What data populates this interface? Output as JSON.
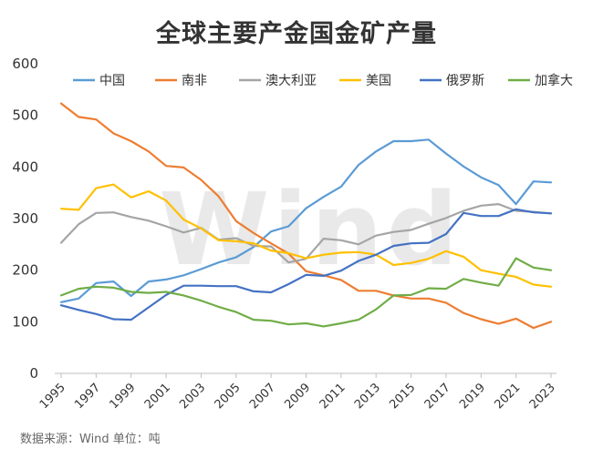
{
  "chart_data": {
    "type": "line",
    "title": "全球主要产金国金矿产量",
    "xlabel": "",
    "ylabel": "",
    "ylim": [
      0,
      600
    ],
    "yticks": [
      0,
      100,
      200,
      300,
      400,
      500,
      600
    ],
    "xlim": [
      1995,
      2023
    ],
    "xticks": [
      1995,
      1997,
      1999,
      2001,
      2003,
      2005,
      2007,
      2009,
      2011,
      2013,
      2015,
      2017,
      2019,
      2021,
      2023
    ],
    "x": [
      1995,
      1996,
      1997,
      1998,
      1999,
      2000,
      2001,
      2002,
      2003,
      2004,
      2005,
      2006,
      2007,
      2008,
      2009,
      2010,
      2011,
      2012,
      2013,
      2014,
      2015,
      2016,
      2017,
      2018,
      2019,
      2020,
      2021,
      2022,
      2023
    ],
    "grid": false,
    "legend_position": "top",
    "series": [
      {
        "name": "中国",
        "color": "#5b9bd5",
        "values": [
          138,
          145,
          175,
          178,
          150,
          178,
          182,
          190,
          202,
          215,
          225,
          245,
          275,
          285,
          320,
          342,
          362,
          404,
          430,
          450,
          450,
          453,
          426,
          401,
          380,
          365,
          328,
          372,
          370
        ]
      },
      {
        "name": "南非",
        "color": "#ed7d31",
        "values": [
          523,
          497,
          492,
          465,
          450,
          430,
          402,
          399,
          375,
          343,
          295,
          272,
          252,
          232,
          198,
          190,
          181,
          160,
          160,
          151,
          145,
          145,
          137,
          117,
          105,
          96,
          106,
          88,
          100
        ]
      },
      {
        "name": "澳大利亚",
        "color": "#a5a5a5",
        "values": [
          253,
          289,
          311,
          312,
          303,
          296,
          285,
          273,
          282,
          259,
          262,
          247,
          246,
          215,
          222,
          261,
          258,
          250,
          267,
          274,
          278,
          290,
          301,
          315,
          325,
          328,
          315,
          313,
          310
        ]
      },
      {
        "name": "美国",
        "color": "#ffc000",
        "values": [
          319,
          317,
          359,
          366,
          341,
          353,
          335,
          298,
          281,
          258,
          256,
          252,
          238,
          233,
          223,
          230,
          234,
          235,
          230,
          210,
          214,
          222,
          237,
          226,
          200,
          193,
          187,
          172,
          168
        ]
      },
      {
        "name": "俄罗斯",
        "color": "#4472c4",
        "values": [
          132,
          123,
          115,
          105,
          104,
          128,
          152,
          170,
          170,
          169,
          169,
          159,
          157,
          173,
          191,
          189,
          199,
          218,
          230,
          247,
          252,
          253,
          270,
          311,
          305,
          305,
          318,
          312,
          310
        ]
      },
      {
        "name": "加拿大",
        "color": "#70ad47",
        "values": [
          151,
          164,
          168,
          166,
          158,
          156,
          158,
          151,
          141,
          129,
          119,
          104,
          102,
          95,
          97,
          91,
          97,
          104,
          124,
          151,
          152,
          165,
          164,
          183,
          176,
          170,
          223,
          205,
          200
        ]
      }
    ]
  },
  "source": {
    "label": "数据来源：Wind   单位：吨"
  },
  "watermark": "Wind"
}
